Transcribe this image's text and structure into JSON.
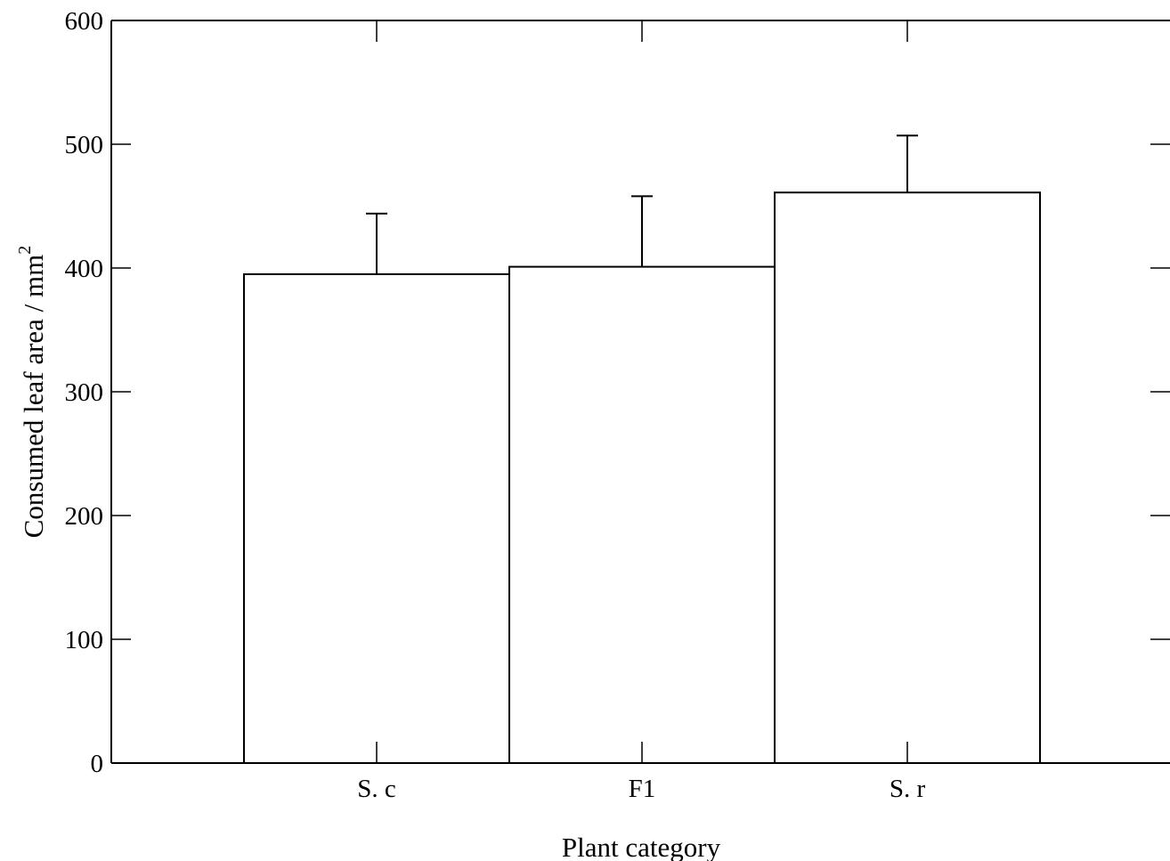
{
  "chart_data": {
    "type": "bar",
    "title": "",
    "xlabel": "Plant category",
    "ylabel": "Consumed leaf area / mm",
    "ylabel_superscript": "2",
    "categories": [
      "S. c",
      "F1",
      "S. r"
    ],
    "values": [
      395,
      401,
      461
    ],
    "error_bars_upper": [
      444,
      458,
      507
    ],
    "ylim": [
      0,
      600
    ],
    "yticks": [
      "0",
      "100",
      "200",
      "300",
      "400",
      "500",
      "600"
    ],
    "ytick_values": [
      0,
      100,
      200,
      300,
      400,
      500,
      600
    ],
    "grid": false,
    "legend": "none",
    "colors": {
      "bar_fill": "#ffffff",
      "stroke": "#000000"
    }
  }
}
